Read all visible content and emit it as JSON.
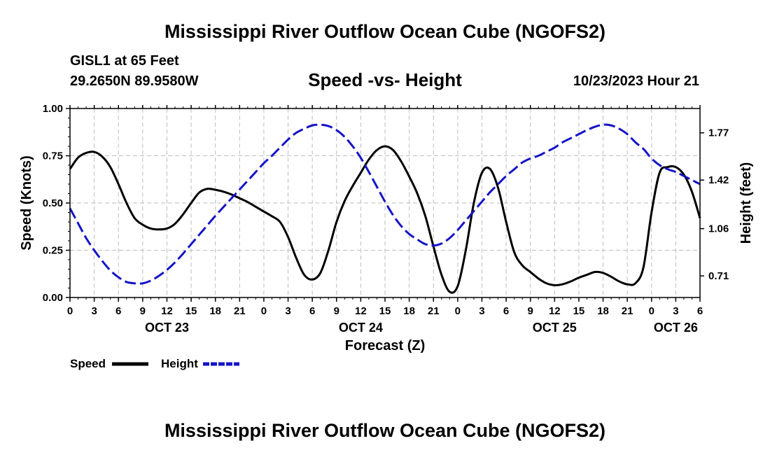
{
  "header": {
    "title": "Mississippi River Outflow Ocean Cube (NGOFS2)",
    "station": "GISL1 at 65 Feet",
    "coords": "29.2650N  89.9580W",
    "chart_title": "Speed -vs- Height",
    "datetime": "10/23/2023 Hour 21"
  },
  "footer": {
    "title": "Mississippi River Outflow Ocean Cube (NGOFS2)"
  },
  "colors": {
    "speed": "#000000",
    "height": "#1414c8",
    "grid": "#bdbdbd"
  },
  "chart_data": {
    "type": "line",
    "title": "Speed -vs- Height",
    "xlabel": "Forecast (Z)",
    "ylabel": "Speed (Knots)",
    "y2label": "Height (feet)",
    "xlim": [
      0,
      78
    ],
    "ylim": [
      0,
      1.0
    ],
    "y2lim": [
      0.55,
      1.95
    ],
    "grid": true,
    "x_ticks": [
      0,
      3,
      6,
      9,
      12,
      15,
      18,
      21,
      24,
      27,
      30,
      33,
      36,
      39,
      42,
      45,
      48,
      51,
      54,
      57,
      60,
      63,
      66,
      69,
      72,
      75,
      78
    ],
    "x_tick_labels": [
      "0",
      "3",
      "6",
      "9",
      "12",
      "15",
      "18",
      "21",
      "0",
      "3",
      "6",
      "9",
      "12",
      "15",
      "18",
      "21",
      "0",
      "3",
      "6",
      "9",
      "12",
      "15",
      "18",
      "21",
      "0",
      "3",
      "6"
    ],
    "day_labels": [
      {
        "x": 12,
        "label": "OCT 23"
      },
      {
        "x": 36,
        "label": "OCT 24"
      },
      {
        "x": 60,
        "label": "OCT 25"
      },
      {
        "x": 75,
        "label": "OCT 26"
      }
    ],
    "y_ticks": [
      0,
      0.25,
      0.5,
      0.75,
      1.0
    ],
    "y_tick_labels": [
      "0.00",
      "0.25",
      "0.50",
      "0.75",
      "1.00"
    ],
    "y2_ticks": [
      0.71,
      1.06,
      1.42,
      1.77
    ],
    "y2_tick_labels": [
      "0.71",
      "1.06",
      "1.42",
      "1.77"
    ],
    "legend": [
      {
        "name": "Speed",
        "style": "solid"
      },
      {
        "name": "Height",
        "style": "dashed"
      }
    ],
    "series": [
      {
        "name": "Speed",
        "axis": "left",
        "x": [
          0,
          1,
          2,
          3,
          4,
          5,
          6,
          7,
          8,
          9,
          10,
          11,
          12,
          13,
          14,
          15,
          16,
          17,
          18,
          19,
          20,
          21,
          22,
          23,
          24,
          25,
          26,
          27,
          28,
          29,
          30,
          31,
          32,
          33,
          34,
          35,
          36,
          37,
          38,
          39,
          40,
          41,
          42,
          43,
          44,
          45,
          46,
          47,
          48,
          49,
          50,
          51,
          52,
          53,
          54,
          55,
          56,
          57,
          58,
          59,
          60,
          61,
          62,
          63,
          64,
          65,
          66,
          67,
          68,
          69,
          70,
          71,
          72,
          73,
          74,
          75,
          76,
          77,
          78
        ],
        "values": [
          0.68,
          0.74,
          0.765,
          0.77,
          0.745,
          0.69,
          0.6,
          0.5,
          0.42,
          0.385,
          0.365,
          0.36,
          0.365,
          0.39,
          0.44,
          0.5,
          0.555,
          0.575,
          0.57,
          0.56,
          0.545,
          0.525,
          0.505,
          0.48,
          0.455,
          0.43,
          0.4,
          0.32,
          0.21,
          0.12,
          0.095,
          0.13,
          0.25,
          0.4,
          0.51,
          0.59,
          0.66,
          0.73,
          0.78,
          0.8,
          0.78,
          0.72,
          0.64,
          0.55,
          0.43,
          0.27,
          0.12,
          0.03,
          0.06,
          0.25,
          0.5,
          0.66,
          0.68,
          0.58,
          0.4,
          0.24,
          0.17,
          0.135,
          0.1,
          0.075,
          0.065,
          0.07,
          0.085,
          0.105,
          0.12,
          0.135,
          0.13,
          0.11,
          0.085,
          0.07,
          0.075,
          0.16,
          0.45,
          0.66,
          0.69,
          0.69,
          0.65,
          0.56,
          0.42
        ]
      },
      {
        "name": "Height",
        "axis": "right",
        "x": [
          0,
          1,
          2,
          3,
          4,
          5,
          6,
          7,
          8,
          9,
          10,
          11,
          12,
          13,
          14,
          15,
          16,
          17,
          18,
          19,
          20,
          21,
          22,
          23,
          24,
          25,
          26,
          27,
          28,
          29,
          30,
          31,
          32,
          33,
          34,
          35,
          36,
          37,
          38,
          39,
          40,
          41,
          42,
          43,
          44,
          45,
          46,
          47,
          48,
          49,
          50,
          51,
          52,
          53,
          54,
          55,
          56,
          57,
          58,
          59,
          60,
          61,
          62,
          63,
          64,
          65,
          66,
          67,
          68,
          69,
          70,
          71,
          72,
          73,
          74,
          75,
          76,
          77,
          78
        ],
        "values": [
          1.21,
          1.1,
          0.99,
          0.9,
          0.82,
          0.75,
          0.7,
          0.665,
          0.655,
          0.655,
          0.675,
          0.71,
          0.755,
          0.81,
          0.875,
          0.945,
          1.015,
          1.085,
          1.155,
          1.22,
          1.285,
          1.35,
          1.415,
          1.48,
          1.545,
          1.6,
          1.66,
          1.72,
          1.77,
          1.8,
          1.825,
          1.83,
          1.82,
          1.79,
          1.74,
          1.67,
          1.585,
          1.48,
          1.37,
          1.26,
          1.16,
          1.08,
          1.02,
          0.98,
          0.945,
          0.935,
          0.95,
          0.99,
          1.05,
          1.12,
          1.19,
          1.26,
          1.33,
          1.39,
          1.45,
          1.5,
          1.55,
          1.58,
          1.6,
          1.63,
          1.66,
          1.7,
          1.73,
          1.76,
          1.79,
          1.815,
          1.83,
          1.825,
          1.8,
          1.76,
          1.7,
          1.65,
          1.58,
          1.53,
          1.5,
          1.48,
          1.45,
          1.42,
          1.39
        ]
      }
    ]
  }
}
